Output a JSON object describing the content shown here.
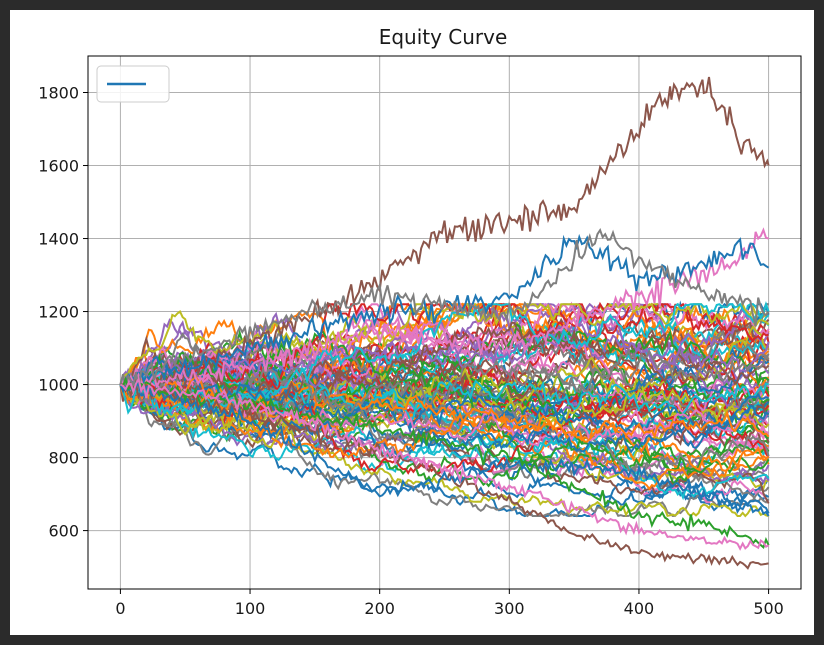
{
  "chart_data": {
    "type": "line",
    "title": "Equity Curve",
    "xlabel": "",
    "ylabel": "",
    "xlim": [
      -25,
      525
    ],
    "ylim": [
      440,
      1900
    ],
    "x_ticks": [
      0,
      100,
      200,
      300,
      400,
      500
    ],
    "y_ticks": [
      600,
      800,
      1000,
      1200,
      1400,
      1600,
      1800
    ],
    "grid": true,
    "legend": {
      "placement": "top-left",
      "entries": [
        {
          "label": "",
          "color": "#1f77b4"
        }
      ]
    },
    "colors": [
      "#1f77b4",
      "#ff7f0e",
      "#2ca02c",
      "#d62728",
      "#9467bd",
      "#8c564b",
      "#e377c2",
      "#7f7f7f",
      "#bcbd22",
      "#17becf"
    ],
    "series_count": 100,
    "start_value": 1000,
    "x_range": [
      0,
      500
    ],
    "series_samples": [
      {
        "color": "#8c564b",
        "points": [
          [
            0,
            1000
          ],
          [
            50,
            1030
          ],
          [
            100,
            1110
          ],
          [
            150,
            1200
          ],
          [
            200,
            1290
          ],
          [
            250,
            1420
          ],
          [
            300,
            1450
          ],
          [
            350,
            1490
          ],
          [
            400,
            1700
          ],
          [
            425,
            1800
          ],
          [
            450,
            1820
          ],
          [
            475,
            1700
          ],
          [
            500,
            1600
          ]
        ]
      },
      {
        "color": "#e377c2",
        "points": [
          [
            0,
            1000
          ],
          [
            100,
            1050
          ],
          [
            200,
            1150
          ],
          [
            300,
            1100
          ],
          [
            400,
            1250
          ],
          [
            475,
            1330
          ],
          [
            490,
            1410
          ],
          [
            500,
            1400
          ]
        ]
      },
      {
        "color": "#1f77b4",
        "points": [
          [
            0,
            1000
          ],
          [
            100,
            1100
          ],
          [
            200,
            1200
          ],
          [
            300,
            1230
          ],
          [
            350,
            1400
          ],
          [
            400,
            1290
          ],
          [
            450,
            1330
          ],
          [
            480,
            1380
          ],
          [
            500,
            1320
          ]
        ]
      },
      {
        "color": "#7f7f7f",
        "points": [
          [
            0,
            1000
          ],
          [
            100,
            1150
          ],
          [
            200,
            1250
          ],
          [
            300,
            1180
          ],
          [
            370,
            1400
          ],
          [
            450,
            1250
          ],
          [
            500,
            1200
          ]
        ]
      },
      {
        "color": "#8c564b",
        "points": [
          [
            0,
            1000
          ],
          [
            100,
            920
          ],
          [
            200,
            820
          ],
          [
            300,
            680
          ],
          [
            350,
            590
          ],
          [
            400,
            540
          ],
          [
            450,
            520
          ],
          [
            480,
            510
          ],
          [
            500,
            510
          ]
        ]
      },
      {
        "color": "#1f77b4",
        "points": [
          [
            0,
            1000
          ],
          [
            100,
            900
          ],
          [
            200,
            700
          ],
          [
            250,
            740
          ],
          [
            300,
            780
          ],
          [
            400,
            760
          ],
          [
            450,
            700
          ],
          [
            500,
            640
          ]
        ]
      },
      {
        "color": "#2ca02c",
        "points": [
          [
            0,
            1000
          ],
          [
            100,
            950
          ],
          [
            200,
            880
          ],
          [
            300,
            800
          ],
          [
            400,
            640
          ],
          [
            450,
            620
          ],
          [
            500,
            560
          ]
        ]
      },
      {
        "color": "#e377c2",
        "points": [
          [
            0,
            1000
          ],
          [
            100,
            950
          ],
          [
            200,
            820
          ],
          [
            300,
            720
          ],
          [
            400,
            600
          ],
          [
            450,
            570
          ],
          [
            500,
            560
          ]
        ]
      }
    ]
  }
}
